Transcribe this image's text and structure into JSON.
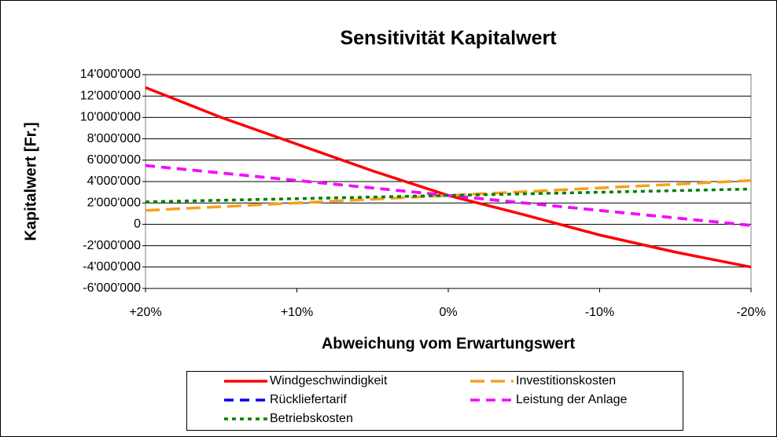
{
  "chart_data": {
    "type": "line",
    "title": "Sensitivität Kapitalwert",
    "x_label": "Abweichung vom Erwartungswert",
    "y_label": "Kapitalwert [Fr.]",
    "x": [
      20,
      15,
      10,
      5,
      0,
      -5,
      -10,
      -15,
      -20
    ],
    "xlim": [
      20,
      -20
    ],
    "xticks": [
      {
        "value": 20,
        "label": "+20%"
      },
      {
        "value": 10,
        "label": "+10%"
      },
      {
        "value": 0,
        "label": "0%"
      },
      {
        "value": -10,
        "label": "-10%"
      },
      {
        "value": -20,
        "label": "-20%"
      }
    ],
    "ylim": [
      -6000000,
      14000000
    ],
    "yticks": [
      {
        "value": -6000000,
        "label": "-6'000'000"
      },
      {
        "value": -4000000,
        "label": "-4'000'000"
      },
      {
        "value": -2000000,
        "label": "-2'000'000"
      },
      0,
      {
        "value": 2000000,
        "label": "2'000'000"
      },
      {
        "value": 4000000,
        "label": "4'000'000"
      },
      {
        "value": 6000000,
        "label": "6'000'000"
      },
      {
        "value": 8000000,
        "label": "8'000'000"
      },
      {
        "value": 10000000,
        "label": "10'000'000"
      },
      {
        "value": 12000000,
        "label": "12'000'000"
      },
      {
        "value": 14000000,
        "label": "14'000'000"
      }
    ],
    "grid": true,
    "legend": "bottom",
    "series": [
      {
        "name": "Windgeschwindigkeit",
        "color": "#ff0000",
        "line_style": "solid",
        "values": [
          12800000,
          10000000,
          7500000,
          5000000,
          2700000,
          900000,
          -1000000,
          -2600000,
          -4000000
        ]
      },
      {
        "name": "Investitionskosten",
        "color": "#f7a01c",
        "line_style": "long-dash",
        "values": [
          1300000,
          1650000,
          2000000,
          2350000,
          2700000,
          3050000,
          3400000,
          3750000,
          4100000
        ]
      },
      {
        "name": "Rückliefertarif",
        "color": "#0000ff",
        "line_style": "dash",
        "values": [
          5500000,
          4800000,
          4100000,
          3400000,
          2700000,
          2000000,
          1300000,
          600000,
          -100000
        ]
      },
      {
        "name": "Leistung der Anlage",
        "color": "#ff00ff",
        "line_style": "dash",
        "values": [
          5500000,
          4800000,
          4100000,
          3400000,
          2700000,
          2000000,
          1300000,
          600000,
          -100000
        ]
      },
      {
        "name": "Betriebskosten",
        "color": "#008000",
        "line_style": "dot",
        "values": [
          2100000,
          2250000,
          2400000,
          2550000,
          2700000,
          2850000,
          3000000,
          3150000,
          3300000
        ]
      }
    ]
  }
}
